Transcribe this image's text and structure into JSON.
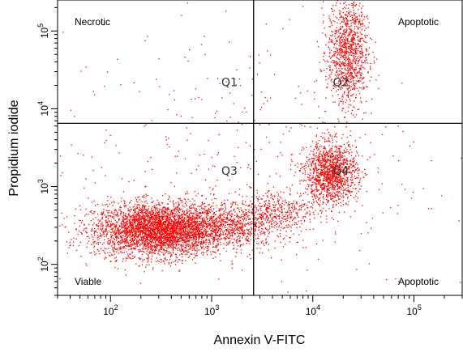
{
  "chart_data": {
    "type": "scatter",
    "title": "",
    "xlabel": "Annexin V-FITC",
    "ylabel": "Propidium iodide",
    "xscale": "log",
    "yscale": "log",
    "xlim": [
      30,
      300000
    ],
    "ylim": [
      40,
      250000
    ],
    "point_color": "#ff0000",
    "x_ticks": [
      {
        "value": 100,
        "label_base": "10",
        "label_exp": "2"
      },
      {
        "value": 1000,
        "label_base": "10",
        "label_exp": "3"
      },
      {
        "value": 10000,
        "label_base": "10",
        "label_exp": "4"
      },
      {
        "value": 100000,
        "label_base": "10",
        "label_exp": "5"
      }
    ],
    "y_ticks": [
      {
        "value": 100,
        "label_base": "10",
        "label_exp": "2"
      },
      {
        "value": 1000,
        "label_base": "10",
        "label_exp": "3"
      },
      {
        "value": 10000,
        "label_base": "10",
        "label_exp": "4"
      },
      {
        "value": 100000,
        "label_base": "10",
        "label_exp": "5"
      }
    ],
    "gates": {
      "x_threshold": 2600,
      "y_threshold": 6500
    },
    "quadrant_labels": [
      {
        "id": "q1",
        "text": "Q1",
        "x": 1500,
        "y": 22000
      },
      {
        "id": "q2",
        "text": "Q2",
        "x": 19000,
        "y": 22000
      },
      {
        "id": "q3",
        "text": "Q3",
        "x": 1500,
        "y": 1600
      },
      {
        "id": "q4",
        "text": "Q4",
        "x": 19000,
        "y": 1600
      }
    ],
    "corner_labels": {
      "top_left": "Necrotic",
      "top_right": "Apoptotic",
      "bottom_left": "Viable",
      "bottom_right": "Apoptotic"
    },
    "clusters": [
      {
        "name": "viable",
        "count": 3800,
        "cx": 300,
        "cy": 280,
        "sx": 0.32,
        "sy": 0.17
      },
      {
        "name": "viable-tail",
        "count": 700,
        "cx": 1500,
        "cy": 330,
        "sx": 0.28,
        "sy": 0.14
      },
      {
        "name": "early-apoptotic",
        "count": 1300,
        "cx": 15000,
        "cy": 1500,
        "sx": 0.13,
        "sy": 0.2
      },
      {
        "name": "late-apoptotic",
        "count": 1100,
        "cx": 22000,
        "cy": 55000,
        "sx": 0.1,
        "sy": 0.35
      },
      {
        "name": "bridge",
        "count": 350,
        "cx": 4500,
        "cy": 500,
        "sx": 0.2,
        "sy": 0.14
      },
      {
        "name": "scatter",
        "count": 420,
        "cx": 2000,
        "cy": 2000,
        "sx": 0.9,
        "sy": 0.9
      }
    ]
  }
}
